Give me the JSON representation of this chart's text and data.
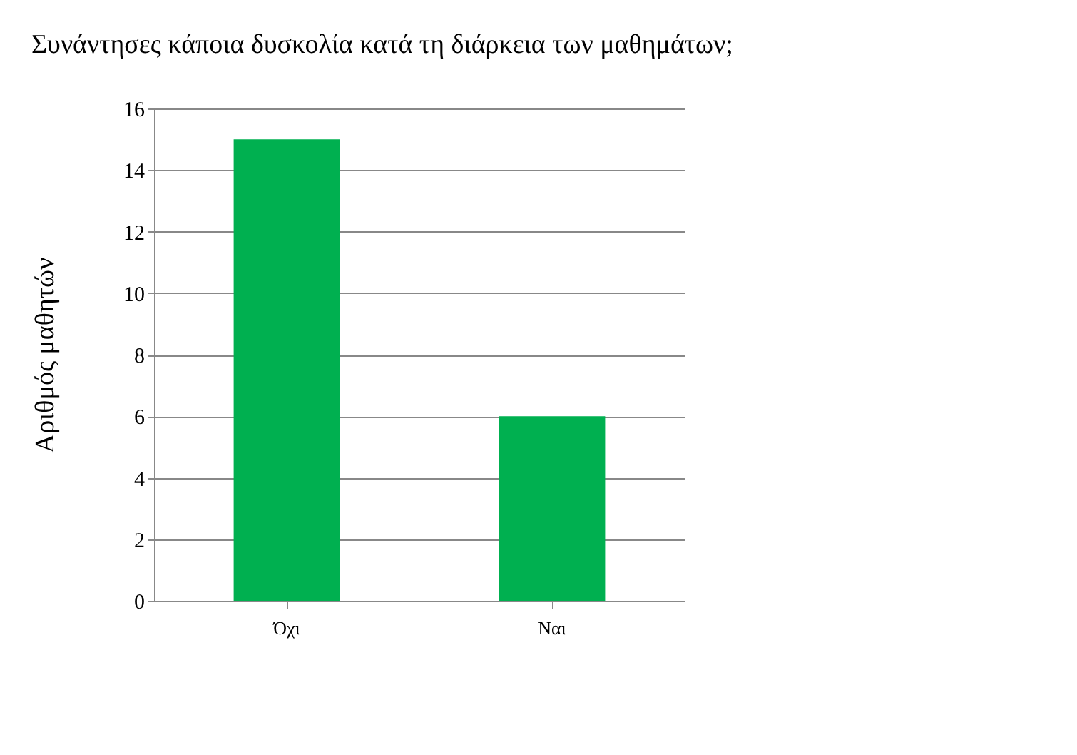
{
  "chart_data": {
    "type": "bar",
    "title": "Συνάντησες κάποια δυσκολία κατά τη διάρκεια των μαθημάτων;",
    "categories": [
      "Όχι",
      "Ναι"
    ],
    "values": [
      15,
      6
    ],
    "color": "#00b050",
    "ylabel": "Αριθμός μαθητών",
    "ylim": [
      0,
      16
    ],
    "yticks": [
      0,
      2,
      4,
      6,
      8,
      10,
      12,
      14,
      16
    ],
    "grid": "y"
  }
}
